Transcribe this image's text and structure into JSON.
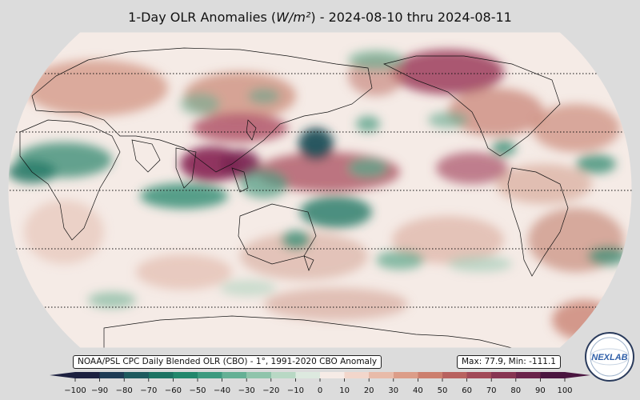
{
  "header": {
    "title_prefix": "1-Day OLR Anomalies (",
    "title_unit": "W/m²",
    "title_suffix": ") - 2024-08-10 thru 2024-08-11"
  },
  "info": {
    "source": "NOAA/PSL CPC Daily Blended OLR (CBO) - 1°, 1991-2020 CBO Anomaly",
    "stats": "Max: 77.9,  Min: -111.1"
  },
  "colorbar": {
    "ticks": [
      "−100",
      "−90",
      "−80",
      "−70",
      "−60",
      "−50",
      "−40",
      "−30",
      "−20",
      "−10",
      "0",
      "10",
      "20",
      "30",
      "40",
      "50",
      "60",
      "70",
      "80",
      "90",
      "100"
    ],
    "colors": [
      "#1d2140",
      "#1f3c55",
      "#1f5a5e",
      "#1c7262",
      "#22876c",
      "#3d9a7f",
      "#65b095",
      "#8fc4ab",
      "#b8d8c4",
      "#dde9df",
      "#f6ebe6",
      "#f2d6cb",
      "#e8bba9",
      "#dc9d88",
      "#cc7f6e",
      "#b8625f",
      "#a14a58",
      "#873552",
      "#6a244b",
      "#4a1640"
    ],
    "vmin": -100,
    "vmax": 100
  },
  "logo": {
    "text": "NEXLAB"
  },
  "colors": {
    "background": "#dcdcdc",
    "ocean_base": "#f5ebe6",
    "positive_strong": "#8a3a5d",
    "negative_strong": "#2b7f6b"
  }
}
